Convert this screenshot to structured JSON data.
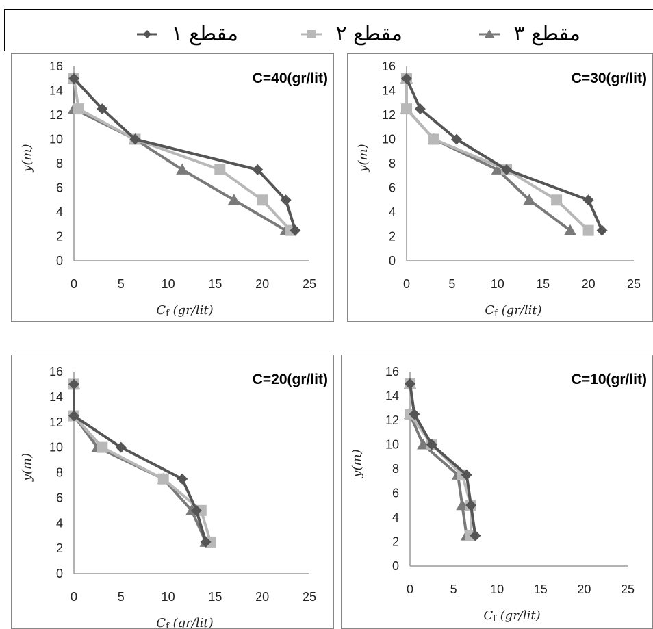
{
  "legend": [
    {
      "label": "مقطع ۳",
      "color": "#7a7a7a",
      "marker": "triangle"
    },
    {
      "label": "مقطع ۲",
      "color": "#b8b8b8",
      "marker": "square"
    },
    {
      "label": "مقطع ۱",
      "color": "#555555",
      "marker": "diamond"
    }
  ],
  "chart_data": [
    {
      "type": "line",
      "title": "C=40(gr/lit)",
      "xlabel": "C_f (gr/lit)",
      "ylabel": "y(m)",
      "xlim": [
        0,
        25
      ],
      "ylim": [
        0,
        16
      ],
      "xticks": [
        "0",
        "5",
        "10",
        "15",
        "20",
        "25"
      ],
      "yticks": [
        "0",
        "2",
        "4",
        "6",
        "8",
        "10",
        "12",
        "14",
        "16"
      ],
      "grid": false,
      "series": [
        {
          "name": "مقطع ۱",
          "color": "#555555",
          "marker": "diamond",
          "points": [
            [
              0,
              15
            ],
            [
              3,
              12.5
            ],
            [
              6.5,
              10
            ],
            [
              19.5,
              7.5
            ],
            [
              22.5,
              5
            ],
            [
              23.5,
              2.5
            ]
          ]
        },
        {
          "name": "مقطع ۲",
          "color": "#b8b8b8",
          "marker": "square",
          "points": [
            [
              0,
              15
            ],
            [
              0.5,
              12.5
            ],
            [
              6.5,
              10
            ],
            [
              15.5,
              7.5
            ],
            [
              20,
              5
            ],
            [
              23,
              2.5
            ]
          ]
        },
        {
          "name": "مقطع ۳",
          "color": "#7a7a7a",
          "marker": "triangle",
          "points": [
            [
              0,
              15
            ],
            [
              0,
              12.5
            ],
            [
              6.5,
              10
            ],
            [
              11.5,
              7.5
            ],
            [
              17,
              5
            ],
            [
              22.5,
              2.5
            ]
          ]
        }
      ]
    },
    {
      "type": "line",
      "title": "C=30(gr/lit)",
      "xlabel": "C_f (gr/lit)",
      "ylabel": "y(m)",
      "xlim": [
        0,
        25
      ],
      "ylim": [
        0,
        16
      ],
      "xticks": [
        "0",
        "5",
        "10",
        "15",
        "20",
        "25"
      ],
      "yticks": [
        "0",
        "2",
        "4",
        "6",
        "8",
        "10",
        "12",
        "14",
        "16"
      ],
      "grid": false,
      "series": [
        {
          "name": "مقطع ۱",
          "color": "#555555",
          "marker": "diamond",
          "points": [
            [
              0,
              15
            ],
            [
              1.5,
              12.5
            ],
            [
              5.5,
              10
            ],
            [
              11,
              7.5
            ],
            [
              20,
              5
            ],
            [
              21.5,
              2.5
            ]
          ]
        },
        {
          "name": "مقطع ۲",
          "color": "#b8b8b8",
          "marker": "square",
          "points": [
            [
              0,
              15
            ],
            [
              0,
              12.5
            ],
            [
              3,
              10
            ],
            [
              11,
              7.5
            ],
            [
              16.5,
              5
            ],
            [
              20,
              2.5
            ]
          ]
        },
        {
          "name": "مقطع ۳",
          "color": "#7a7a7a",
          "marker": "triangle",
          "points": [
            [
              0,
              15
            ],
            [
              0,
              12.5
            ],
            [
              3,
              10
            ],
            [
              10,
              7.5
            ],
            [
              13.5,
              5
            ],
            [
              18,
              2.5
            ]
          ]
        }
      ]
    },
    {
      "type": "line",
      "title": "C=20(gr/lit)",
      "xlabel": "C_f (gr/lit)",
      "ylabel": "y(m)",
      "xlim": [
        0,
        25
      ],
      "ylim": [
        0,
        16
      ],
      "xticks": [
        "0",
        "5",
        "10",
        "15",
        "20",
        "25"
      ],
      "yticks": [
        "0",
        "2",
        "4",
        "6",
        "8",
        "10",
        "12",
        "14",
        "16"
      ],
      "grid": false,
      "series": [
        {
          "name": "مقطع ۱",
          "color": "#555555",
          "marker": "diamond",
          "points": [
            [
              0,
              15
            ],
            [
              0,
              12.5
            ],
            [
              5,
              10
            ],
            [
              11.5,
              7.5
            ],
            [
              13,
              5
            ],
            [
              14,
              2.5
            ]
          ]
        },
        {
          "name": "مقطع ۲",
          "color": "#b8b8b8",
          "marker": "square",
          "points": [
            [
              0,
              15
            ],
            [
              0,
              12.5
            ],
            [
              3,
              10
            ],
            [
              9.5,
              7.5
            ],
            [
              13.5,
              5
            ],
            [
              14.5,
              2.5
            ]
          ]
        },
        {
          "name": "مقطع ۳",
          "color": "#7a7a7a",
          "marker": "triangle",
          "points": [
            [
              0,
              15
            ],
            [
              0,
              12.5
            ],
            [
              2.5,
              10
            ],
            [
              9.5,
              7.5
            ],
            [
              12.5,
              5
            ],
            [
              14,
              2.5
            ]
          ]
        }
      ]
    },
    {
      "type": "line",
      "title": "C=10(gr/lit)",
      "xlabel": "C_f (gr/lit)",
      "ylabel": "y(m)",
      "xlim": [
        0,
        25
      ],
      "ylim": [
        0,
        16
      ],
      "xticks": [
        "0",
        "5",
        "10",
        "15",
        "20",
        "25"
      ],
      "yticks": [
        "0",
        "2",
        "4",
        "6",
        "8",
        "10",
        "12",
        "14",
        "16"
      ],
      "grid": false,
      "series": [
        {
          "name": "مقطع ۱",
          "color": "#555555",
          "marker": "diamond",
          "points": [
            [
              0,
              15
            ],
            [
              0.5,
              12.5
            ],
            [
              2.5,
              10
            ],
            [
              6.5,
              7.5
            ],
            [
              7,
              5
            ],
            [
              7.5,
              2.5
            ]
          ]
        },
        {
          "name": "مقطع ۲",
          "color": "#b8b8b8",
          "marker": "square",
          "points": [
            [
              0,
              15
            ],
            [
              0,
              12.5
            ],
            [
              2.5,
              10
            ],
            [
              6,
              7.5
            ],
            [
              7,
              5
            ],
            [
              7,
              2.5
            ]
          ]
        },
        {
          "name": "مقطع ۳",
          "color": "#7a7a7a",
          "marker": "triangle",
          "points": [
            [
              0,
              15
            ],
            [
              0,
              12.5
            ],
            [
              1.5,
              10
            ],
            [
              5.5,
              7.5
            ],
            [
              6,
              5
            ],
            [
              6.5,
              2.5
            ]
          ]
        }
      ]
    }
  ]
}
